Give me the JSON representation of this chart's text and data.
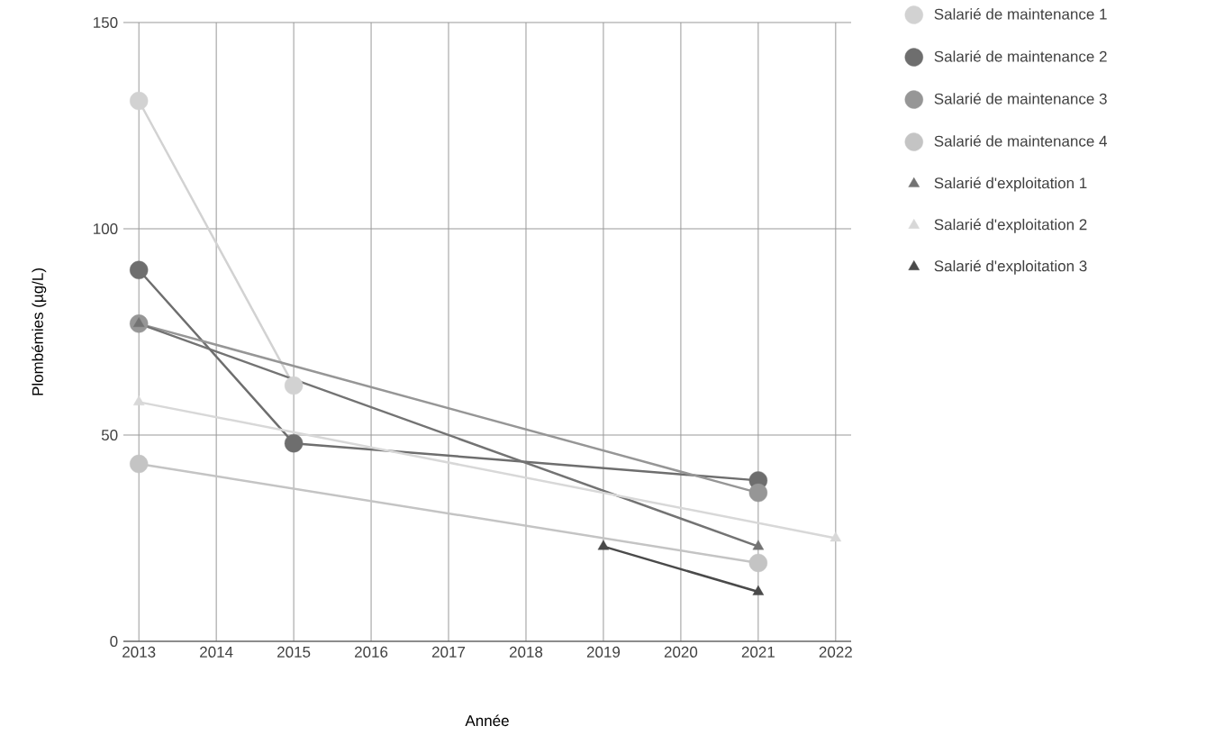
{
  "chart_data": {
    "type": "line",
    "xlabel": "Année",
    "ylabel": "Plombémies (µg/L)",
    "xlim": [
      2012.8,
      2022.2
    ],
    "ylim": [
      0,
      150
    ],
    "xticks": [
      2013,
      2014,
      2015,
      2016,
      2017,
      2018,
      2019,
      2020,
      2021,
      2022
    ],
    "yticks": [
      0,
      50,
      100,
      150
    ],
    "grid": true,
    "legend": "top right",
    "series": [
      {
        "name": "Salarié de maintenance 1",
        "color": "#d2d2d2",
        "marker": "circle",
        "x": [
          2013,
          2015
        ],
        "values": [
          131,
          62
        ]
      },
      {
        "name": "Salarié de maintenance 2",
        "color": "#6e6e6e",
        "marker": "circle",
        "x": [
          2013,
          2015,
          2021
        ],
        "values": [
          90,
          48,
          39
        ]
      },
      {
        "name": "Salarié de maintenance 3",
        "color": "#969696",
        "marker": "circle",
        "x": [
          2013,
          2021
        ],
        "values": [
          77,
          36
        ]
      },
      {
        "name": "Salarié de maintenance 4",
        "color": "#c4c4c4",
        "marker": "circle",
        "x": [
          2013,
          2021
        ],
        "values": [
          43,
          19
        ]
      },
      {
        "name": "Salarié d'exploitation 1",
        "color": "#737373",
        "marker": "triangle",
        "x": [
          2013,
          2021
        ],
        "values": [
          77,
          23
        ]
      },
      {
        "name": "Salarié d'exploitation 2",
        "color": "#d8d8d8",
        "marker": "triangle",
        "x": [
          2013,
          2022
        ],
        "values": [
          58,
          25
        ]
      },
      {
        "name": "Salarié d'exploitation 3",
        "color": "#4a4a4a",
        "marker": "triangle",
        "x": [
          2019,
          2021
        ],
        "values": [
          23,
          12
        ]
      }
    ]
  }
}
